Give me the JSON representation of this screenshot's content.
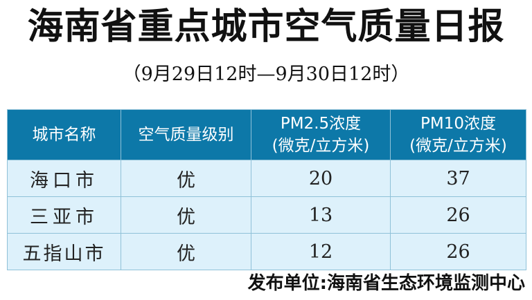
{
  "title": "海南省重点城市空气质量日报",
  "subtitle": "（9月29日12时—9月30日12时）",
  "table": {
    "headers": [
      {
        "line1": "城市名称",
        "line2": ""
      },
      {
        "line1": "空气质量级别",
        "line2": ""
      },
      {
        "line1": "PM2.5浓度",
        "line2": "(微克/立方米)"
      },
      {
        "line1": "PM10浓度",
        "line2": "(微克/立方米)"
      }
    ],
    "rows": [
      [
        "海口市",
        "优",
        "20",
        "37"
      ],
      [
        "三亚市",
        "优",
        "13",
        "26"
      ],
      [
        "五指山市",
        "优",
        "12",
        "26"
      ]
    ]
  },
  "footer": "发布单位:海南省生态环境监测中心",
  "colors": {
    "header_bg": "#0d78a8",
    "row_bg": "#ddf1fb"
  }
}
